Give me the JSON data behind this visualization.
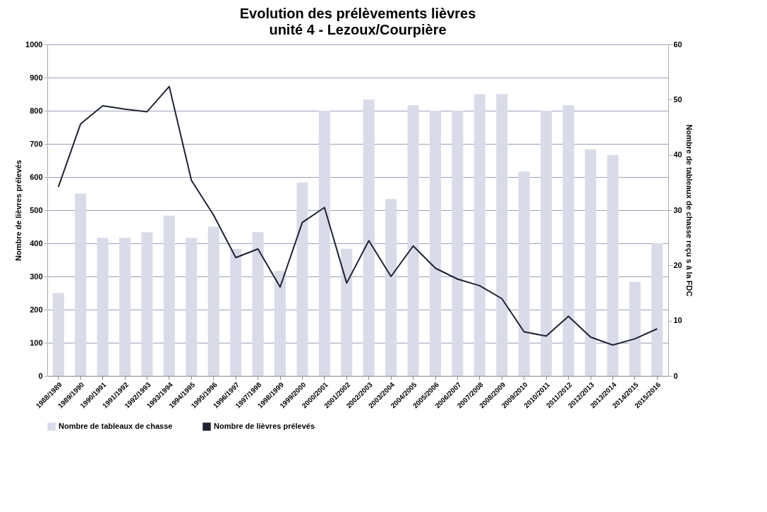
{
  "chart_data": {
    "type": "line",
    "title": "Evolution des prélèvements lièvres",
    "subtitle": "unité 4 - Lezoux/Courpière",
    "ylabel": "Nombre de lièvres prélevés",
    "y2label": "Nombre de tableaux de chasse reçu s à la FDC",
    "categories": [
      "1988/1989",
      "1989/1990",
      "1990/1991",
      "1991/1992",
      "1992/1993",
      "1993/1994",
      "1994/1995",
      "1995/1996",
      "1996/1997",
      "1997/1998",
      "1998/1999",
      "1999/2000",
      "2000/2001",
      "2001/2002",
      "2002/2003",
      "2003/2004",
      "2004/2005",
      "2005/2006",
      "2006/2007",
      "2007/2008",
      "2008/2009",
      "2009/2010",
      "2010/2011",
      "2011/2012",
      "2012/2013",
      "2013/2014",
      "2014/2015",
      "2015/2016"
    ],
    "series": [
      {
        "name": "Nombre de tableaux de chasse",
        "type": "bar",
        "axis": "y2",
        "color": "#d9dbe8",
        "values": [
          15,
          33,
          25,
          25,
          26,
          29,
          25,
          27,
          23,
          26,
          19,
          35,
          48,
          23,
          50,
          32,
          49,
          48,
          48,
          51,
          51,
          37,
          48,
          49,
          41,
          40,
          17,
          24
        ]
      },
      {
        "name": "Nombre de lièvres prélevés",
        "color": "#1f2233",
        "values": [
          570,
          760,
          815,
          805,
          797,
          873,
          590,
          485,
          357,
          383,
          268,
          463,
          508,
          280,
          408,
          300,
          392,
          325,
          292,
          272,
          233,
          133,
          120,
          180,
          117,
          93,
          112,
          142
        ]
      }
    ],
    "ylim": [
      0,
      1000
    ],
    "yticks": [
      0,
      100,
      200,
      300,
      400,
      500,
      600,
      700,
      800,
      900,
      1000
    ],
    "y2lim": [
      0,
      60
    ],
    "y2ticks": [
      0,
      10,
      20,
      30,
      40,
      50,
      60
    ],
    "grid": "y",
    "legend": "bottom",
    "marker": "none",
    "line_style": "solid"
  }
}
